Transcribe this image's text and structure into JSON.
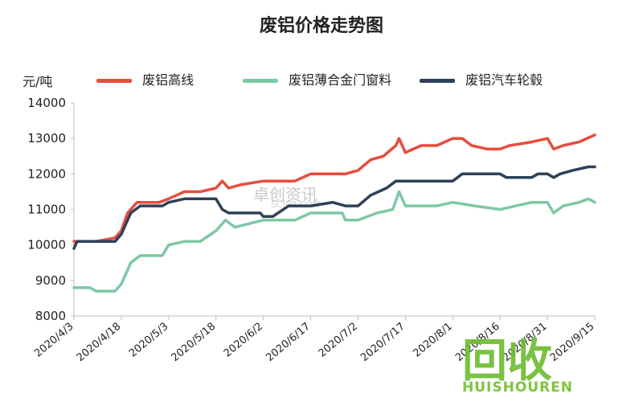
{
  "chart_data": {
    "type": "line",
    "title": "废铝价格走势图",
    "ylabel": "元/吨",
    "xlabel": "",
    "ylim": [
      8000,
      14000
    ],
    "yticks": [
      8000,
      9000,
      10000,
      11000,
      12000,
      13000,
      14000
    ],
    "x_ticks": [
      "2020/4/3",
      "2020/4/18",
      "2020/5/3",
      "2020/5/18",
      "2020/6/2",
      "2020/6/17",
      "2020/7/2",
      "2020/7/17",
      "2020/8/1",
      "2020/8/16",
      "2020/8/31",
      "2020/9/15"
    ],
    "legend_position": "top",
    "series": [
      {
        "name": "废铝高线",
        "color": "#e84c3d",
        "points": [
          [
            "2020/4/3",
            10100
          ],
          [
            "2020/4/10",
            10100
          ],
          [
            "2020/4/16",
            10200
          ],
          [
            "2020/4/18",
            10400
          ],
          [
            "2020/4/20",
            10900
          ],
          [
            "2020/4/23",
            11200
          ],
          [
            "2020/4/30",
            11200
          ],
          [
            "2020/5/3",
            11300
          ],
          [
            "2020/5/8",
            11500
          ],
          [
            "2020/5/13",
            11500
          ],
          [
            "2020/5/18",
            11600
          ],
          [
            "2020/5/20",
            11800
          ],
          [
            "2020/5/22",
            11600
          ],
          [
            "2020/5/26",
            11700
          ],
          [
            "2020/6/2",
            11800
          ],
          [
            "2020/6/12",
            11800
          ],
          [
            "2020/6/17",
            12000
          ],
          [
            "2020/6/24",
            12000
          ],
          [
            "2020/6/28",
            12000
          ],
          [
            "2020/7/2",
            12100
          ],
          [
            "2020/7/6",
            12400
          ],
          [
            "2020/7/10",
            12500
          ],
          [
            "2020/7/14",
            12800
          ],
          [
            "2020/7/15",
            13000
          ],
          [
            "2020/7/17",
            12600
          ],
          [
            "2020/7/22",
            12800
          ],
          [
            "2020/7/27",
            12800
          ],
          [
            "2020/8/1",
            13000
          ],
          [
            "2020/8/4",
            13000
          ],
          [
            "2020/8/7",
            12800
          ],
          [
            "2020/8/12",
            12700
          ],
          [
            "2020/8/16",
            12700
          ],
          [
            "2020/8/19",
            12800
          ],
          [
            "2020/8/26",
            12900
          ],
          [
            "2020/8/31",
            13000
          ],
          [
            "2020/9/2",
            12700
          ],
          [
            "2020/9/5",
            12800
          ],
          [
            "2020/9/10",
            12900
          ],
          [
            "2020/9/15",
            13100
          ]
        ]
      },
      {
        "name": "废铝薄合金门窗料",
        "color": "#7ec8a4",
        "points": [
          [
            "2020/4/3",
            8800
          ],
          [
            "2020/4/8",
            8800
          ],
          [
            "2020/4/10",
            8700
          ],
          [
            "2020/4/16",
            8700
          ],
          [
            "2020/4/18",
            8900
          ],
          [
            "2020/4/21",
            9500
          ],
          [
            "2020/4/24",
            9700
          ],
          [
            "2020/5/1",
            9700
          ],
          [
            "2020/5/3",
            10000
          ],
          [
            "2020/5/8",
            10100
          ],
          [
            "2020/5/13",
            10100
          ],
          [
            "2020/5/18",
            10400
          ],
          [
            "2020/5/21",
            10700
          ],
          [
            "2020/5/24",
            10500
          ],
          [
            "2020/6/2",
            10700
          ],
          [
            "2020/6/12",
            10700
          ],
          [
            "2020/6/17",
            10900
          ],
          [
            "2020/6/27",
            10900
          ],
          [
            "2020/6/28",
            10700
          ],
          [
            "2020/7/2",
            10700
          ],
          [
            "2020/7/8",
            10900
          ],
          [
            "2020/7/13",
            11000
          ],
          [
            "2020/7/15",
            11500
          ],
          [
            "2020/7/17",
            11100
          ],
          [
            "2020/7/27",
            11100
          ],
          [
            "2020/8/1",
            11200
          ],
          [
            "2020/8/8",
            11100
          ],
          [
            "2020/8/16",
            11000
          ],
          [
            "2020/8/21",
            11100
          ],
          [
            "2020/8/26",
            11200
          ],
          [
            "2020/8/31",
            11200
          ],
          [
            "2020/9/2",
            10900
          ],
          [
            "2020/9/5",
            11100
          ],
          [
            "2020/9/10",
            11200
          ],
          [
            "2020/9/13",
            11300
          ],
          [
            "2020/9/15",
            11200
          ]
        ]
      },
      {
        "name": "废铝汽车轮毂",
        "color": "#2e4156",
        "points": [
          [
            "2020/4/3",
            9900
          ],
          [
            "2020/4/4",
            10100
          ],
          [
            "2020/4/10",
            10100
          ],
          [
            "2020/4/16",
            10100
          ],
          [
            "2020/4/18",
            10300
          ],
          [
            "2020/4/21",
            10900
          ],
          [
            "2020/4/24",
            11100
          ],
          [
            "2020/5/1",
            11100
          ],
          [
            "2020/5/3",
            11200
          ],
          [
            "2020/5/8",
            11300
          ],
          [
            "2020/5/18",
            11300
          ],
          [
            "2020/5/20",
            11000
          ],
          [
            "2020/5/22",
            10900
          ],
          [
            "2020/6/1",
            10900
          ],
          [
            "2020/6/2",
            10800
          ],
          [
            "2020/6/5",
            10800
          ],
          [
            "2020/6/10",
            11100
          ],
          [
            "2020/6/17",
            11100
          ],
          [
            "2020/6/24",
            11200
          ],
          [
            "2020/6/28",
            11100
          ],
          [
            "2020/7/2",
            11100
          ],
          [
            "2020/7/6",
            11400
          ],
          [
            "2020/7/11",
            11600
          ],
          [
            "2020/7/14",
            11800
          ],
          [
            "2020/7/17",
            11800
          ],
          [
            "2020/7/27",
            11800
          ],
          [
            "2020/8/1",
            11800
          ],
          [
            "2020/8/4",
            12000
          ],
          [
            "2020/8/16",
            12000
          ],
          [
            "2020/8/18",
            11900
          ],
          [
            "2020/8/26",
            11900
          ],
          [
            "2020/8/28",
            12000
          ],
          [
            "2020/8/31",
            12000
          ],
          [
            "2020/9/2",
            11900
          ],
          [
            "2020/9/4",
            12000
          ],
          [
            "2020/9/8",
            12100
          ],
          [
            "2020/9/13",
            12200
          ],
          [
            "2020/9/15",
            12200
          ]
        ]
      }
    ]
  },
  "watermark": {
    "center_text": "卓创资讯",
    "center_sub": "SCI99.COM",
    "logo_hanzi": "回收",
    "logo_text": "HUISHOUREN"
  }
}
